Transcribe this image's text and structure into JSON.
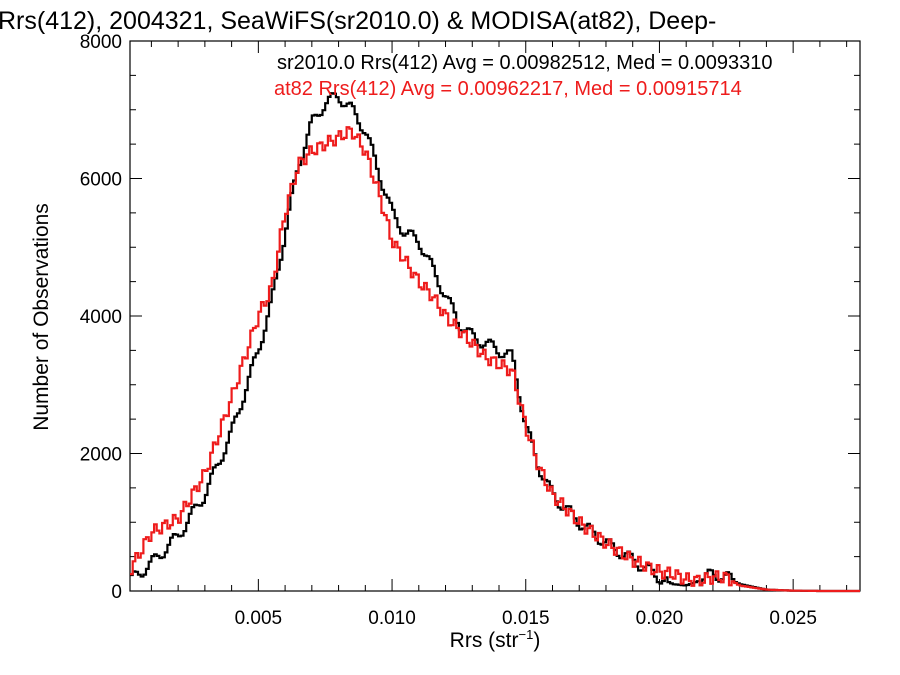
{
  "chart_data": {
    "type": "line",
    "title": "Rrs(412), 2004321, SeaWiFS(sr2010.0) & MODISA(at82), Deep-",
    "xlabel": "Rrs (str",
    "xlabel_sup": "−1",
    "xlabel_end": ")",
    "ylabel": "Number of Observations",
    "xlim": [
      0.0002,
      0.0275
    ],
    "ylim": [
      0,
      8000
    ],
    "x_ticks": [
      0.005,
      0.01,
      0.015,
      0.02,
      0.025
    ],
    "x_tick_labels": [
      "0.005",
      "0.010",
      "0.015",
      "0.020",
      "0.025"
    ],
    "y_ticks": [
      0,
      2000,
      4000,
      6000,
      8000
    ],
    "y_tick_labels": [
      "0",
      "2000",
      "4000",
      "6000",
      "8000"
    ],
    "step": true,
    "series": [
      {
        "name": "sr2010.0",
        "legend": "sr2010.0 Rrs(412) Avg = 0.00982512, Med = 0.0093310",
        "color": "#000000",
        "x": [
          0.0002,
          0.001,
          0.002,
          0.003,
          0.004,
          0.005,
          0.0055,
          0.006,
          0.0065,
          0.007,
          0.0075,
          0.008,
          0.0085,
          0.009,
          0.0095,
          0.01,
          0.0105,
          0.011,
          0.0115,
          0.012,
          0.0125,
          0.013,
          0.0135,
          0.014,
          0.0145,
          0.015,
          0.0155,
          0.016,
          0.017,
          0.018,
          0.019,
          0.02,
          0.0205,
          0.021,
          0.0215,
          0.022,
          0.0225,
          0.023,
          0.024,
          0.025,
          0.026,
          0.0275
        ],
        "y": [
          150,
          400,
          800,
          1400,
          2300,
          3500,
          4200,
          5200,
          6200,
          6800,
          7100,
          7200,
          7000,
          6700,
          6100,
          5500,
          5200,
          5100,
          4700,
          4300,
          3900,
          3700,
          3600,
          3500,
          3400,
          2400,
          1800,
          1400,
          1000,
          700,
          450,
          200,
          100,
          80,
          150,
          250,
          200,
          100,
          20,
          5,
          0,
          0
        ]
      },
      {
        "name": "at82",
        "legend": "at82 Rrs(412) Avg = 0.00962217, Med = 0.00915714",
        "color": "#ee1c1c",
        "x": [
          0.0002,
          0.001,
          0.002,
          0.003,
          0.004,
          0.005,
          0.0055,
          0.006,
          0.0065,
          0.007,
          0.0075,
          0.008,
          0.0085,
          0.009,
          0.0095,
          0.01,
          0.0105,
          0.011,
          0.0115,
          0.012,
          0.0125,
          0.013,
          0.0135,
          0.014,
          0.0145,
          0.015,
          0.0155,
          0.016,
          0.017,
          0.018,
          0.019,
          0.02,
          0.0205,
          0.021,
          0.0215,
          0.022,
          0.0225,
          0.023,
          0.024,
          0.025,
          0.026,
          0.0275
        ],
        "y": [
          300,
          850,
          1050,
          1700,
          2800,
          4000,
          4400,
          5500,
          6200,
          6400,
          6500,
          6600,
          6700,
          6400,
          5800,
          5100,
          4800,
          4500,
          4300,
          4000,
          3800,
          3600,
          3400,
          3300,
          3200,
          2400,
          1800,
          1400,
          1000,
          700,
          450,
          280,
          250,
          170,
          150,
          200,
          200,
          80,
          20,
          5,
          0,
          0
        ]
      }
    ]
  }
}
